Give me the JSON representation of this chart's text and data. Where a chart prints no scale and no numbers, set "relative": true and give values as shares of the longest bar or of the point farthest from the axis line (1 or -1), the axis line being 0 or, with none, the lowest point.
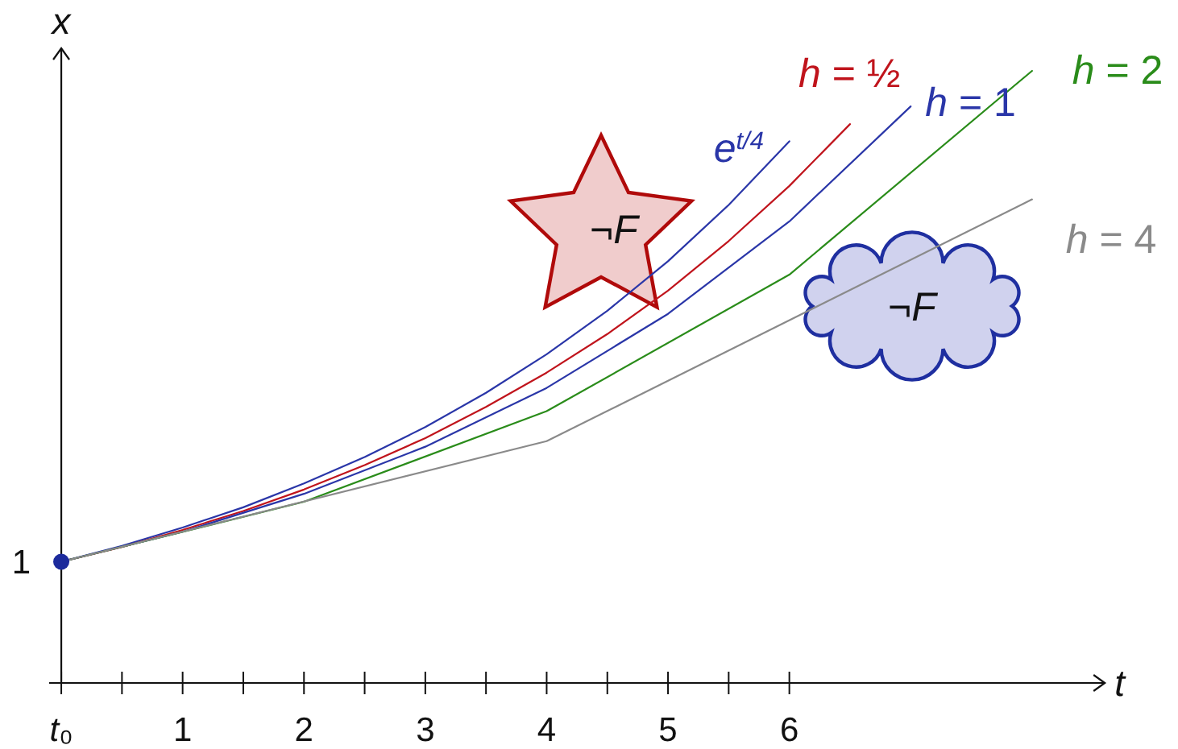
{
  "chart_data": {
    "type": "line",
    "xlabel": "t",
    "ylabel": "x",
    "relative": true,
    "line_style": "solid",
    "xlim": [
      -0.1,
      8.6
    ],
    "xticks": [
      {
        "value": 0,
        "label": "t₀"
      },
      {
        "value": 0.5,
        "label": null
      },
      1,
      {
        "value": 1.5,
        "label": null
      },
      2,
      {
        "value": 2.5,
        "label": null
      },
      3,
      {
        "value": 3.5,
        "label": null
      },
      4,
      {
        "value": 4.5,
        "label": null
      },
      5,
      {
        "value": 5.5,
        "label": null
      },
      6
    ],
    "series": [
      {
        "name": "e$^{t/4}$",
        "color": "#2a36a8",
        "x": [
          0,
          0.5,
          1,
          1.5,
          2,
          2.5,
          3,
          3.5,
          4,
          4.5,
          5,
          5.5,
          6
        ],
        "values": [
          0.198,
          0.224,
          0.254,
          0.287,
          0.326,
          0.369,
          0.418,
          0.474,
          0.537,
          0.608,
          0.689,
          0.781,
          0.885
        ]
      },
      {
        "name": "h = ½",
        "color": "#c0141c",
        "x": [
          0,
          0.5,
          1,
          1.5,
          2,
          2.5,
          3,
          3.5,
          4,
          4.5,
          5,
          5.5,
          6,
          6.5
        ],
        "values": [
          0.198,
          0.222,
          0.25,
          0.281,
          0.316,
          0.356,
          0.4,
          0.451,
          0.507,
          0.57,
          0.641,
          0.722,
          0.812,
          0.913
        ]
      },
      {
        "name": "h = 1",
        "color": "#2a36a8",
        "x": [
          0,
          1,
          2,
          3,
          4,
          5,
          6,
          7
        ],
        "values": [
          0.198,
          0.247,
          0.309,
          0.386,
          0.482,
          0.603,
          0.754,
          0.942
        ]
      },
      {
        "name": "h = 2",
        "color": "#2a8c1a",
        "x": [
          0,
          2,
          4,
          6,
          8
        ],
        "values": [
          0.198,
          0.296,
          0.444,
          0.667,
          1
        ]
      },
      {
        "name": "h = 4",
        "color": "#8a8a8a",
        "x": [
          0,
          4,
          8
        ],
        "values": [
          0.198,
          0.395,
          0.79
        ]
      },
      {
        "type": "scatter",
        "color": "#1c2a9c",
        "marker": "circle",
        "x": [
          0
        ],
        "values": [
          0.198
        ]
      }
    ],
    "annotations": [
      {
        "text": "1",
        "x": 0,
        "y": 0.198
      },
      "¬F",
      "¬F"
    ]
  }
}
